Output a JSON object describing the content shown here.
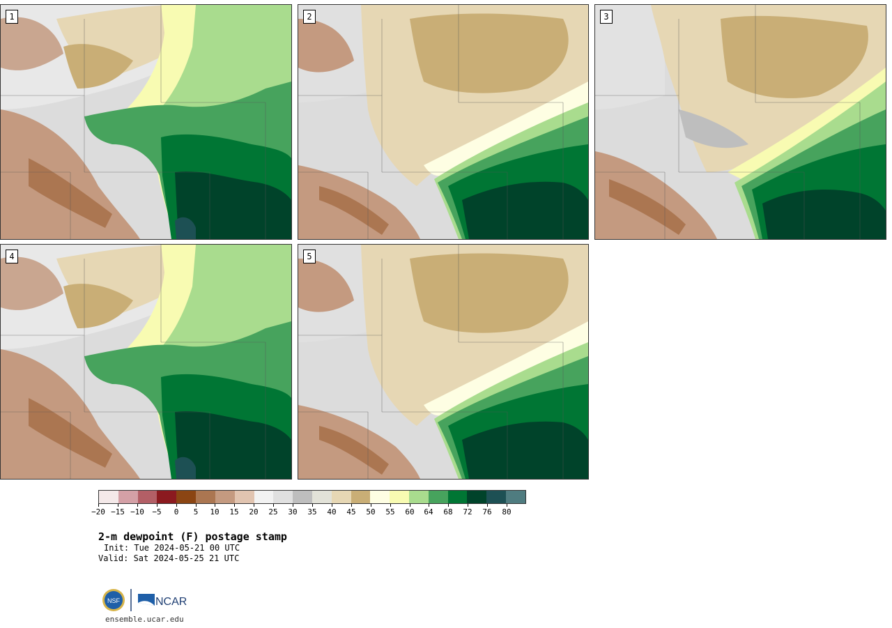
{
  "panels": [
    {
      "label": "1",
      "pattern": "a"
    },
    {
      "label": "2",
      "pattern": "b"
    },
    {
      "label": "3",
      "pattern": "b"
    },
    {
      "label": "4",
      "pattern": "a"
    },
    {
      "label": "5",
      "pattern": "b"
    }
  ],
  "colorbar": {
    "colors": [
      "#f4e9e9",
      "#d4a0a6",
      "#b35f66",
      "#8b1a1f",
      "#8b4513",
      "#ab7651",
      "#c49a80",
      "#e1c4b0",
      "#f2f2f2",
      "#e0e0e0",
      "#bebebe",
      "#e2e2d8",
      "#e6d7b4",
      "#c9ae76",
      "#fefee3",
      "#f8fbb2",
      "#a9dc8e",
      "#47a35d",
      "#007634",
      "#00432a",
      "#1d5054",
      "#4f7c80"
    ],
    "tick_labels": [
      "−20",
      "−15",
      "−10",
      "−5",
      "0",
      "5",
      "10",
      "15",
      "20",
      "25",
      "30",
      "35",
      "40",
      "45",
      "50",
      "55",
      "60",
      "64",
      "68",
      "72",
      "76",
      "80"
    ]
  },
  "title": "2-m dewpoint (F) postage stamp",
  "init": "Init: Tue 2024-05-21 00 UTC",
  "valid": "Valid: Sat 2024-05-25 21 UTC",
  "logos": {
    "nsf": "NSF",
    "ncar": "NCAR"
  },
  "url": "ensemble.ucar.edu"
}
